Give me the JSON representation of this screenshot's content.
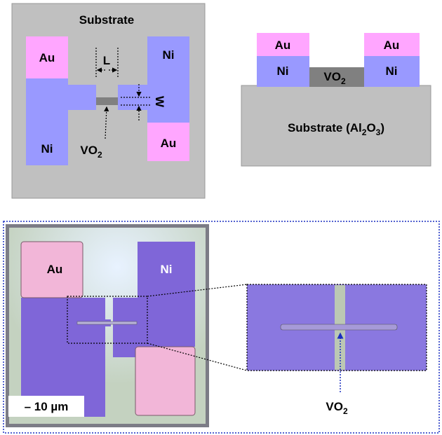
{
  "schematic_top": {
    "substrate": "Substrate",
    "pad_au_left": "Au",
    "pad_ni_left": "Ni",
    "pad_ni_right": "Ni",
    "pad_au_right": "Au",
    "length": "L",
    "width": "W",
    "channel": {
      "base": "VO",
      "sub": "2"
    }
  },
  "cross_section": {
    "pad_au_left": "Au",
    "pad_ni_left": "Ni",
    "channel": {
      "base": "VO",
      "sub": "2"
    },
    "pad_ni_right": "Ni",
    "pad_au_right": "Au",
    "substrate": [
      {
        "text": "Substrate (Al"
      },
      {
        "sub": "2"
      },
      {
        "text": "O"
      },
      {
        "sub": "3"
      },
      {
        "text": ")"
      }
    ]
  },
  "micrograph": {
    "pad_au": "Au",
    "pad_ni": "Ni",
    "scale_bar": "– 10 µm",
    "channel": {
      "base": "VO",
      "sub": "2"
    }
  }
}
